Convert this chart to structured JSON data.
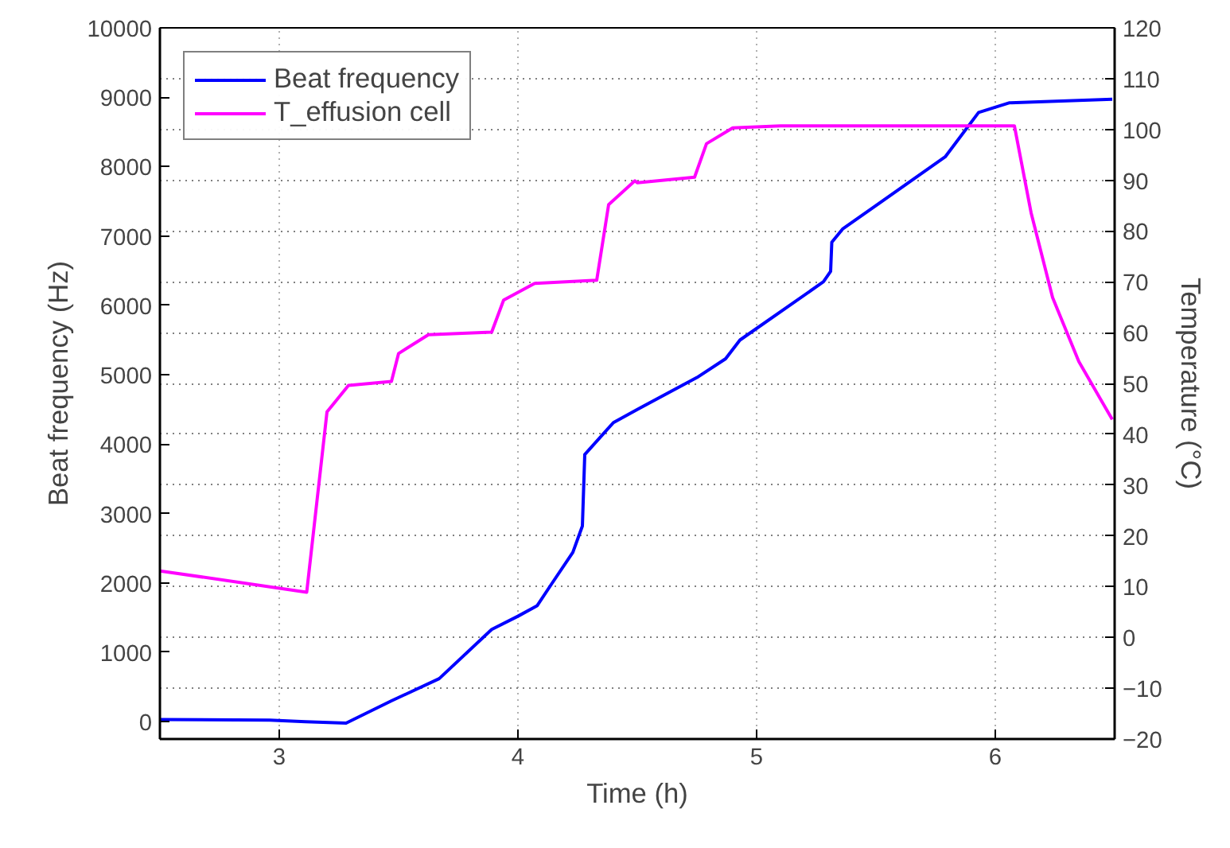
{
  "chart_data": {
    "type": "line",
    "xlabel": "Time (h)",
    "ylabel": "Beat frequency (Hz)",
    "y2label": "Temperature (°C)",
    "xlim": [
      2.5,
      6.5
    ],
    "xticks": [
      3,
      4,
      5,
      6
    ],
    "ylim": [
      -250,
      10000
    ],
    "yticks": [
      0,
      1000,
      2000,
      3000,
      4000,
      5000,
      6000,
      7000,
      8000,
      9000,
      10000
    ],
    "y2lim": [
      -20,
      120
    ],
    "y2ticks": [
      -20,
      -10,
      0,
      10,
      20,
      30,
      40,
      50,
      60,
      70,
      80,
      90,
      100,
      110,
      120
    ],
    "grid": true,
    "legend": "top left",
    "line_style": "solid",
    "marker": "none",
    "series": [
      {
        "name": "Beat frequency",
        "color": "#0000ff",
        "x": [
          2.5,
          2.96,
          3.11,
          3.28,
          3.47,
          3.67,
          3.89,
          4.0,
          4.08,
          4.14,
          4.23,
          4.27,
          4.28,
          4.4,
          4.5,
          4.75,
          4.87,
          4.93,
          5.28,
          5.31,
          5.315,
          5.36,
          5.79,
          5.93,
          6.06,
          6.49
        ],
        "values": [
          30,
          23,
          0,
          -20,
          300,
          620,
          1330,
          1520,
          1670,
          1980,
          2440,
          2820,
          3850,
          4310,
          4500,
          4960,
          5230,
          5500,
          6340,
          6490,
          6910,
          7100,
          8140,
          8780,
          8920,
          8970
        ]
      },
      {
        "name": "T_effusion cell",
        "color": "#ff00ff",
        "axis": "y2",
        "x": [
          2.5,
          3.115,
          3.2,
          3.29,
          3.47,
          3.5,
          3.625,
          3.89,
          3.94,
          4.07,
          4.33,
          4.38,
          4.49,
          4.5,
          4.74,
          4.79,
          4.9,
          5.1,
          6.08,
          6.15,
          6.24,
          6.35,
          6.49
        ],
        "values": [
          13.1,
          8.9,
          44.4,
          49.6,
          50.4,
          55.9,
          59.6,
          60.1,
          66.4,
          69.7,
          70.3,
          85.2,
          89.9,
          89.5,
          90.6,
          97.2,
          100.3,
          100.7,
          100.7,
          83.6,
          66.9,
          54.3,
          42.9
        ]
      }
    ]
  }
}
